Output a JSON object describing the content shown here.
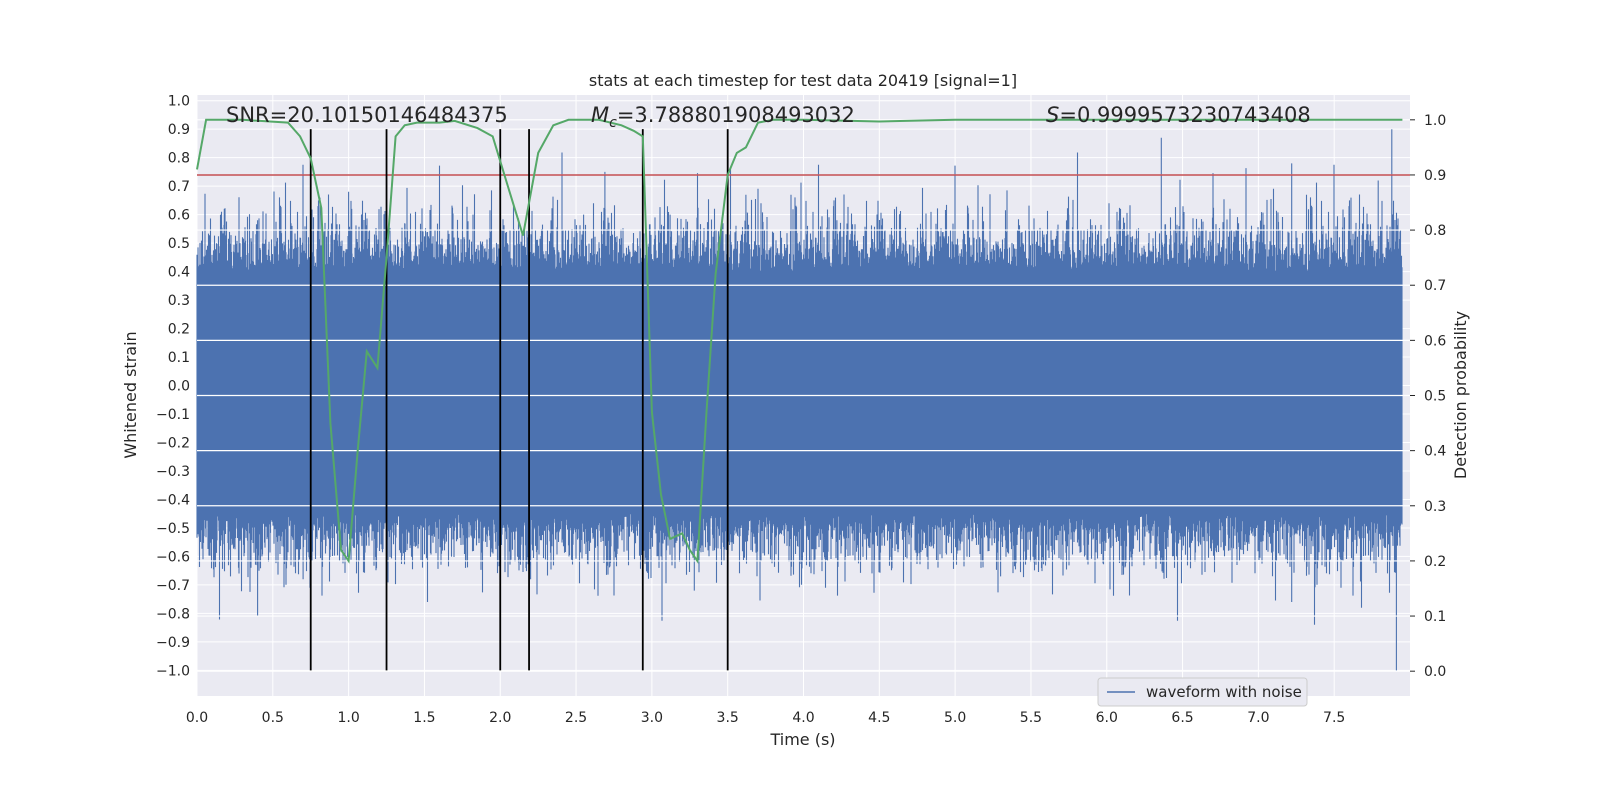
{
  "chart_data": {
    "type": "line",
    "title": "stats at each timestep for test data 20419 [signal=1]",
    "xlabel": "Time (s)",
    "ylabel_left": "Whitened strain",
    "ylabel_right": "Detection probability",
    "xlim": [
      0.0,
      8.0
    ],
    "ylim_left": [
      -1.09,
      1.02
    ],
    "ylim_right": [
      -0.045,
      1.045
    ],
    "x_ticks": [
      "0.0",
      "0.5",
      "1.0",
      "1.5",
      "2.0",
      "2.5",
      "3.0",
      "3.5",
      "4.0",
      "4.5",
      "5.0",
      "5.5",
      "6.0",
      "6.5",
      "7.0",
      "7.5"
    ],
    "y_ticks_left": [
      "1.0",
      "0.9",
      "0.8",
      "0.7",
      "0.6",
      "0.5",
      "0.4",
      "0.3",
      "0.2",
      "0.1",
      "0.0",
      "−0.1",
      "−0.2",
      "−0.3",
      "−0.4",
      "−0.5",
      "−0.6",
      "−0.7",
      "−0.8",
      "−0.9",
      "−1.0"
    ],
    "y_ticks_right": [
      "1.0",
      "0.9",
      "0.8",
      "0.7",
      "0.6",
      "0.5",
      "0.4",
      "0.3",
      "0.2",
      "0.1",
      "0.0"
    ],
    "grid": true,
    "legend": {
      "entries": [
        "waveform with noise"
      ],
      "placement": "lower-right"
    },
    "annotations": {
      "snr": "SNR=20.10150146484375",
      "mc_symbol": "M",
      "mc_sub": "c",
      "mc_value": "=3.788801908493032",
      "s_symbol": "S",
      "s_value": "=0.9999573230743408"
    },
    "threshold": {
      "value_right": 0.9,
      "color": "#c44e52"
    },
    "event_markers": {
      "x": [
        0.75,
        1.25,
        2.0,
        2.19,
        2.94,
        3.5
      ],
      "y_range": [
        -1.0,
        0.9
      ],
      "color": "#000000"
    },
    "waveform": {
      "name": "waveform with noise",
      "color": "#4c72b0",
      "x_range": [
        0.0,
        7.95
      ],
      "core_amplitude": [
        -0.45,
        0.4
      ],
      "peaks_up": [
        [
          0.4,
          0.58
        ],
        [
          0.18,
          0.62
        ],
        [
          0.62,
          0.57
        ],
        [
          1.0,
          0.68
        ],
        [
          1.02,
          0.62
        ],
        [
          1.37,
          0.57
        ],
        [
          1.82,
          0.6
        ],
        [
          2.55,
          0.6
        ],
        [
          2.69,
          0.75
        ],
        [
          3.12,
          0.6
        ],
        [
          3.62,
          0.67
        ],
        [
          3.72,
          0.64
        ],
        [
          4.22,
          0.58
        ],
        [
          5.75,
          0.6
        ],
        [
          6.36,
          0.87
        ],
        [
          7.22,
          0.78
        ],
        [
          7.88,
          0.9
        ],
        [
          7.79,
          0.72
        ]
      ],
      "peaks_down": [
        [
          0.4,
          -0.81
        ],
        [
          0.7,
          -0.68
        ],
        [
          1.52,
          -0.76
        ],
        [
          2.2,
          -0.68
        ],
        [
          3.28,
          -0.72
        ],
        [
          5.3,
          -0.67
        ],
        [
          7.22,
          -0.76
        ],
        [
          7.37,
          -0.84
        ],
        [
          7.68,
          -0.78
        ],
        [
          7.91,
          -1.0
        ]
      ]
    },
    "detection_probability": {
      "color": "#55a868",
      "x": [
        0.0,
        0.06,
        0.3,
        0.6,
        0.68,
        0.75,
        0.82,
        0.88,
        0.95,
        1.0,
        1.06,
        1.12,
        1.19,
        1.25,
        1.31,
        1.37,
        1.45,
        1.6,
        1.7,
        1.85,
        1.95,
        2.05,
        2.15,
        2.25,
        2.35,
        2.45,
        2.65,
        2.8,
        2.88,
        2.94,
        3.0,
        3.06,
        3.12,
        3.2,
        3.25,
        3.3,
        3.36,
        3.42,
        3.5,
        3.56,
        3.62,
        3.7,
        3.8,
        4.0,
        4.5,
        5.0,
        5.5,
        6.0,
        6.5,
        7.0,
        7.5,
        7.95
      ],
      "y": [
        0.91,
        1.0,
        1.0,
        0.995,
        0.97,
        0.93,
        0.84,
        0.45,
        0.22,
        0.2,
        0.4,
        0.58,
        0.55,
        0.75,
        0.97,
        0.99,
        0.995,
        0.995,
        0.998,
        0.985,
        0.97,
        0.88,
        0.79,
        0.94,
        0.99,
        1.0,
        1.0,
        0.99,
        0.98,
        0.97,
        0.47,
        0.32,
        0.24,
        0.25,
        0.22,
        0.2,
        0.47,
        0.72,
        0.9,
        0.94,
        0.95,
        0.995,
        1.0,
        1.0,
        0.997,
        1.0,
        1.0,
        1.0,
        1.0,
        1.0,
        1.0,
        1.0
      ]
    }
  }
}
